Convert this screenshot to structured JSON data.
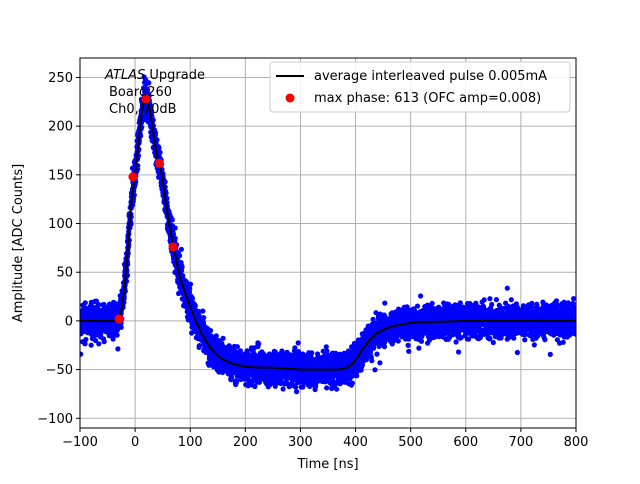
{
  "chart_data": {
    "type": "scatter",
    "title": "",
    "xlabel": "Time [ns]",
    "ylabel": "Amplitude [ADC Counts]",
    "xlim": [
      -100,
      800
    ],
    "ylim": [
      -110,
      270
    ],
    "xticks": [
      -100,
      0,
      100,
      200,
      300,
      400,
      500,
      600,
      700,
      800
    ],
    "yticks": [
      -100,
      -50,
      0,
      50,
      100,
      150,
      200,
      250
    ],
    "grid": true,
    "legend_position": "top-right",
    "annotation": {
      "line1_italic": "ATLAS",
      "line1_rest": " Upgrade",
      "line2": "Board260",
      "line3": "Ch0, 70dB"
    },
    "series": [
      {
        "name": "average interleaved pulse 0.005mA",
        "type": "line",
        "color": "#000000",
        "x": [
          -100,
          -40,
          -33,
          -29,
          -25,
          -20,
          -15,
          -10,
          -5,
          0,
          5,
          10,
          15,
          20,
          25,
          30,
          35,
          40,
          45,
          50,
          55,
          60,
          65,
          70,
          75,
          80,
          90,
          100,
          110,
          120,
          130,
          140,
          150,
          160,
          175,
          200,
          225,
          250,
          275,
          300,
          325,
          350,
          370,
          385,
          395,
          405,
          415,
          425,
          440,
          460,
          480,
          500,
          520,
          550,
          600,
          650,
          700,
          750,
          800
        ],
        "y": [
          0,
          0,
          0,
          2,
          10,
          30,
          60,
          100,
          130,
          150,
          175,
          205,
          225,
          230,
          222,
          205,
          185,
          168,
          160,
          145,
          125,
          105,
          90,
          76,
          62,
          48,
          30,
          15,
          0,
          -12,
          -22,
          -30,
          -36,
          -40,
          -44,
          -47,
          -48,
          -48,
          -49,
          -50,
          -50,
          -50,
          -50,
          -48,
          -44,
          -36,
          -27,
          -20,
          -12,
          -7,
          -4,
          -2,
          -1,
          -1,
          0,
          0,
          0,
          0,
          0
        ]
      },
      {
        "name": "max phase: 613 (OFC amp=0.008)",
        "type": "scatter",
        "color": "#ff0000",
        "x": [
          -29,
          -4,
          20,
          44,
          69
        ],
        "y": [
          2,
          148,
          228,
          162,
          76
        ]
      },
      {
        "name": "",
        "type": "scatter-band",
        "color": "#0000ff",
        "spread": 15
      }
    ]
  }
}
